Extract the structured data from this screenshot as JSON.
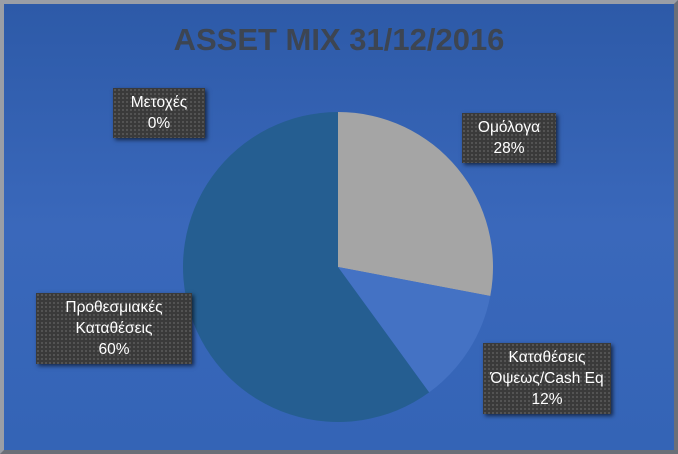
{
  "chart_data": {
    "type": "pie",
    "title": "ASSET MIX 31/12/2016",
    "categories": [
      "Ομόλογα",
      "Καταθέσεις Όψεως/Cash Eq",
      "Προθεσμιακές Καταθέσεις",
      "Μετοχές"
    ],
    "values": [
      28,
      12,
      60,
      0
    ],
    "value_labels": [
      "28%",
      "12%",
      "60%",
      "0%"
    ],
    "colors": [
      "#a5a5a5",
      "#4472c4",
      "#255e91",
      "#5b9bd5"
    ]
  }
}
